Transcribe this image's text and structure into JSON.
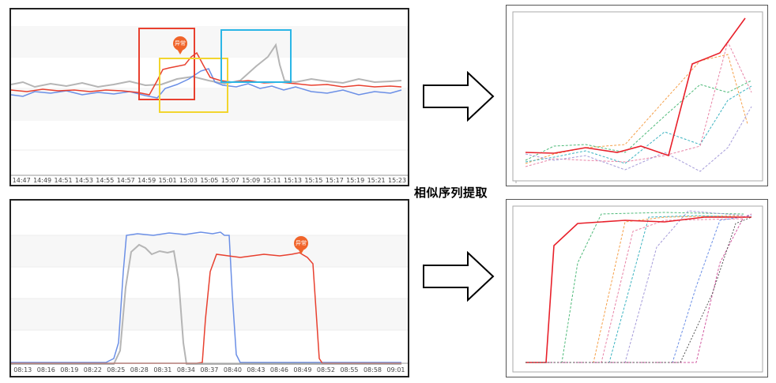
{
  "caption": "相似序列提取",
  "top_left": {
    "time_ticks": [
      "14:47",
      "14:49",
      "14:51",
      "14:53",
      "14:55",
      "14:57",
      "14:59",
      "15:01",
      "15:03",
      "15:05",
      "15:07",
      "15:09",
      "15:11",
      "15:13",
      "15:15",
      "15:17",
      "15:19",
      "15:21",
      "15:23"
    ],
    "anomaly_label": "异常"
  },
  "bottom_left": {
    "time_ticks": [
      "08:13",
      "08:16",
      "08:19",
      "08:22",
      "08:25",
      "08:28",
      "08:31",
      "08:34",
      "08:37",
      "08:40",
      "08:43",
      "08:46",
      "08:49",
      "08:52",
      "08:55",
      "08:58",
      "09:01"
    ],
    "anomaly_label": "异常"
  },
  "colors": {
    "red": "#e8402f",
    "blue": "#6b8fe6",
    "gray": "#b5b5b5",
    "orange_box": "#e8402f",
    "yellow_box": "#f2d52e",
    "cyan_box": "#2bb6e6"
  }
}
